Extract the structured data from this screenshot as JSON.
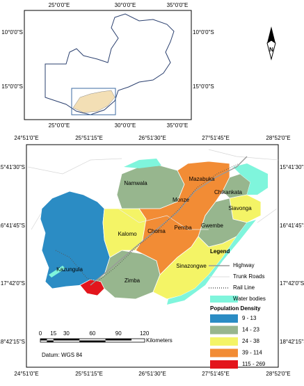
{
  "inset_map": {
    "x_labels": [
      "25°0'0\"E",
      "30°0'0\"E",
      "35°0'0\"E"
    ],
    "y_labels": [
      "10°0'0\"S",
      "15°0'0\"S"
    ]
  },
  "north_arrow": "N",
  "main_map": {
    "x_labels": [
      "24°51'0\"E",
      "25°51'15\"E",
      "26°51'30\"E",
      "27°51'45\"E",
      "28°52'0\"E"
    ],
    "y_labels": [
      "15°41'30\"S",
      "16°41'45\"S",
      "17°42'0\"S",
      "18°42'15\"S"
    ],
    "districts": [
      "Namwala",
      "Mazabuka",
      "Chikankata",
      "Siavonga",
      "Monze",
      "Kalomo",
      "Choma",
      "Pemba",
      "Gwembe",
      "Kazungula",
      "Sinazongwe",
      "Zimba"
    ],
    "scale_bar": {
      "ticks": [
        0,
        15,
        30,
        60,
        90,
        120
      ],
      "unit": "Kilometers"
    },
    "datum": "Datum: WGS 84"
  },
  "legend": {
    "title": "Legend",
    "features": [
      "Highway",
      "Trunk Roads",
      "Rail Line",
      "Water bodies"
    ],
    "density_title": "Population Density",
    "density_classes": [
      {
        "label": "9 - 13",
        "color": "#2b8cc4"
      },
      {
        "label": "14 - 23",
        "color": "#97b68e"
      },
      {
        "label": "24 - 38",
        "color": "#f4f466"
      },
      {
        "label": "39 - 114",
        "color": "#f28c35"
      },
      {
        "label": "115 - 269",
        "color": "#e3151c"
      }
    ]
  }
}
